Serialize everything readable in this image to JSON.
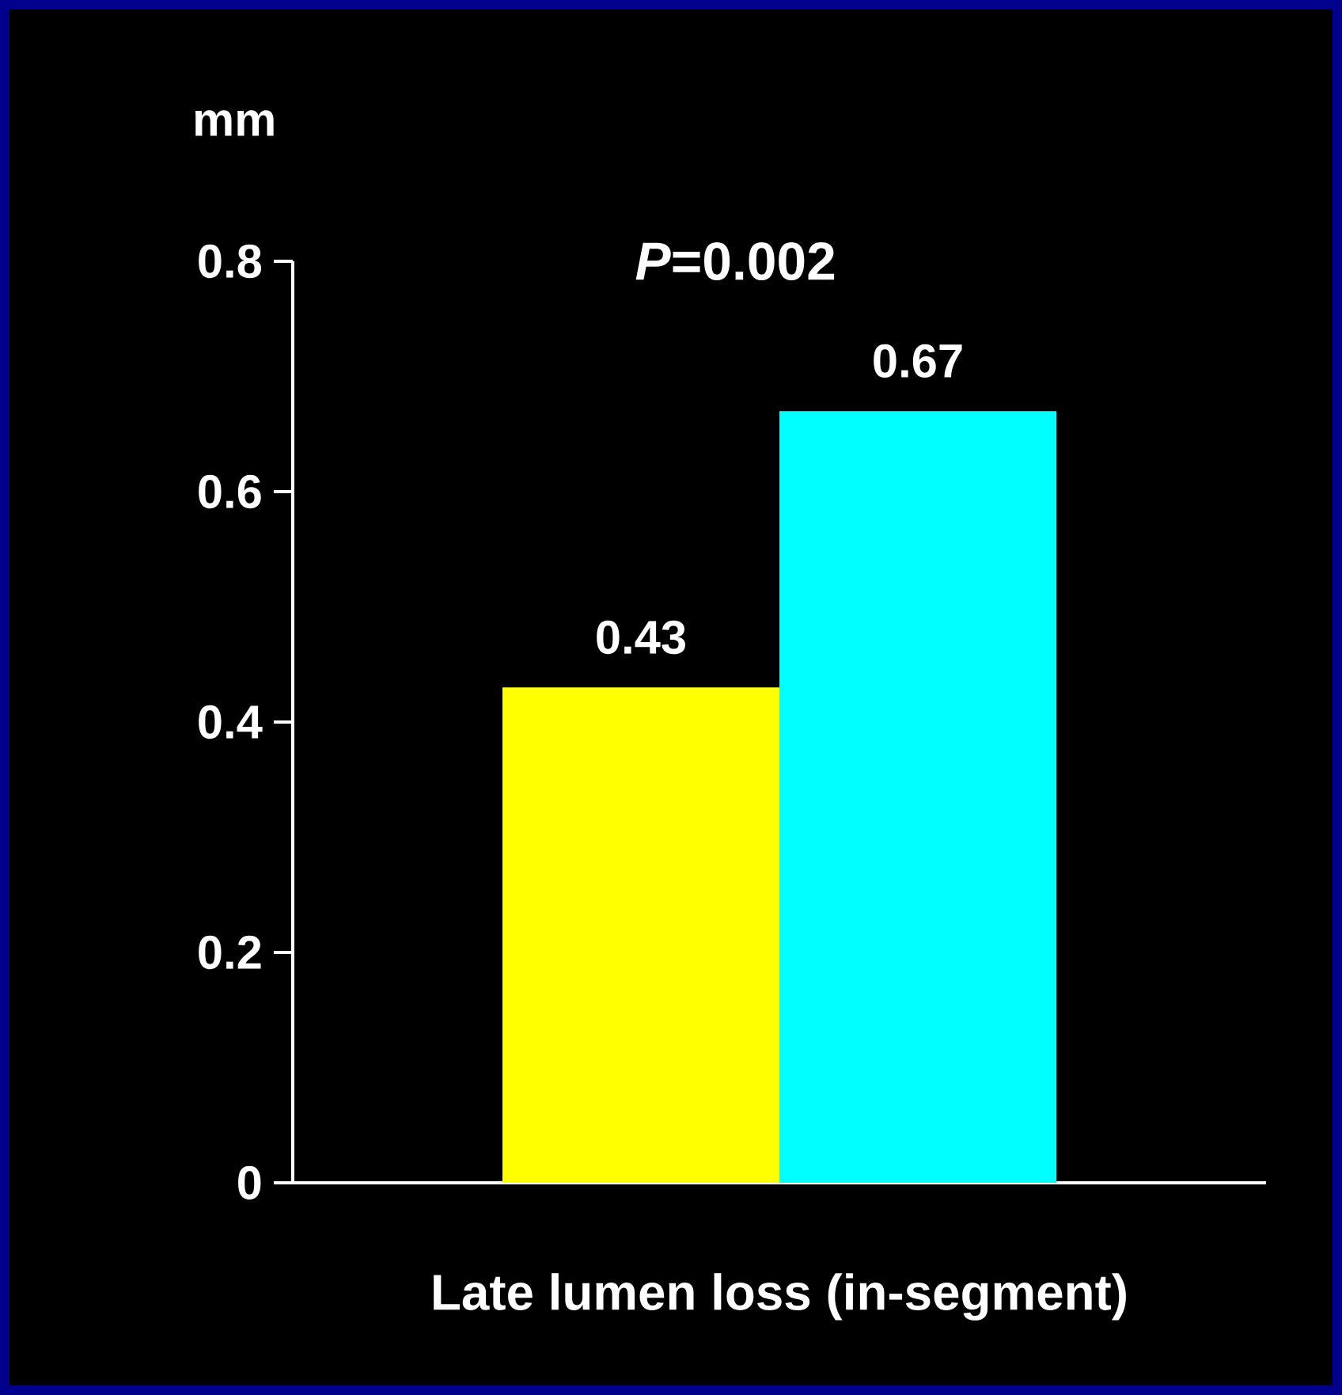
{
  "chart_data": {
    "type": "bar",
    "categories": [
      null
    ],
    "series": [
      {
        "color": "#ffff00",
        "values": [
          0.43
        ]
      },
      {
        "color": "#00ffff",
        "values": [
          0.67
        ]
      }
    ],
    "data_labels": true,
    "ylabel": "mm",
    "xlabel": "Late lumen loss (in-segment)",
    "annotations": [
      "*P*=0.002"
    ],
    "ylim": [
      0,
      0.8
    ],
    "yticks": [
      0,
      0.2,
      0.4,
      0.6,
      0.8
    ]
  }
}
